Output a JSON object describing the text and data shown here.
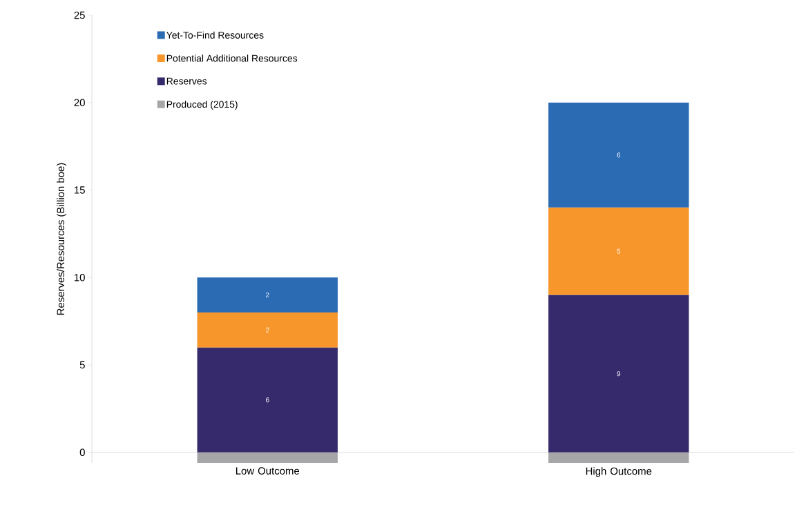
{
  "chart_data": {
    "type": "bar",
    "stacked": true,
    "ylabel": "Reserves/Resources (Billion boe)",
    "categories": [
      "Low Outcome",
      "High Outcome"
    ],
    "series": [
      {
        "name": "Produced (2015)",
        "color": "#a6a6a8",
        "values": [
          -0.6,
          -0.6
        ]
      },
      {
        "name": "Reserves",
        "color": "#372a6c",
        "values": [
          6,
          9
        ],
        "value_labels": [
          "6",
          "9"
        ]
      },
      {
        "name": "Potential Additional Resources",
        "color": "#f7962b",
        "values": [
          2,
          5
        ],
        "value_labels": [
          "2",
          "5"
        ]
      },
      {
        "name": "Yet-To-Find Resources",
        "color": "#2a6bb3",
        "values": [
          2,
          6
        ],
        "value_labels": [
          "2",
          "6"
        ]
      }
    ],
    "ylim": [
      -0.6,
      25
    ],
    "yticks": [
      0,
      5,
      10,
      15,
      20,
      25
    ],
    "legend": "top left",
    "grid": false
  }
}
